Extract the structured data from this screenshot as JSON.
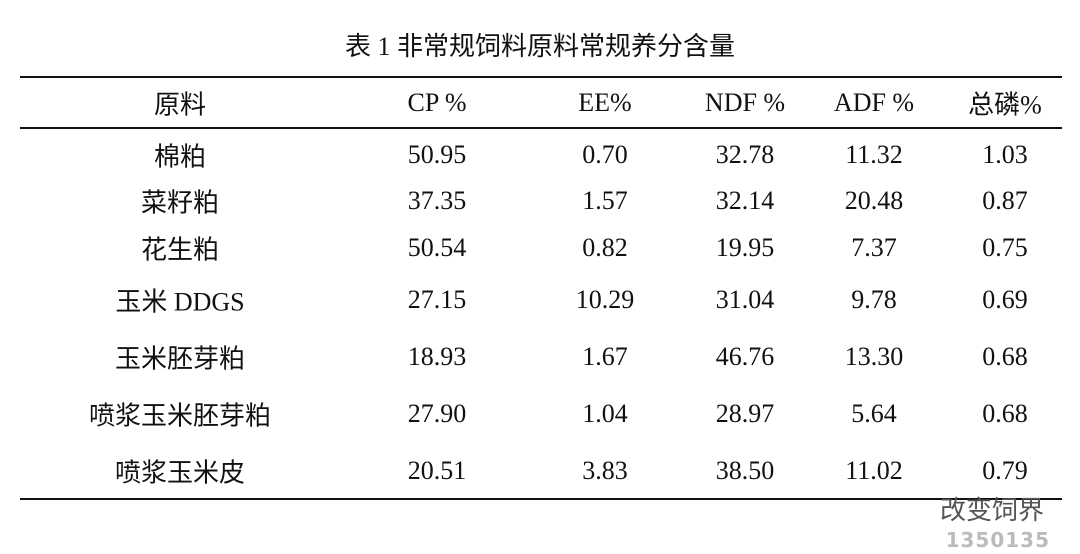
{
  "title": "表 1  非常规饲料原料常规养分含量",
  "table": {
    "header": [
      "原料",
      "CP %",
      "EE%",
      "NDF %",
      "ADF %",
      "总磷%"
    ],
    "rows": [
      [
        "棉粕",
        "50.95",
        "0.70",
        "32.78",
        "11.32",
        "1.03"
      ],
      [
        "菜籽粕",
        "37.35",
        "1.57",
        "32.14",
        "20.48",
        "0.87"
      ],
      [
        "花生粕",
        "50.54",
        "0.82",
        "19.95",
        "7.37",
        "0.75"
      ],
      [
        "玉米 DDGS",
        "27.15",
        "10.29",
        "31.04",
        "9.78",
        "0.69"
      ],
      [
        "玉米胚芽粕",
        "18.93",
        "1.67",
        "46.76",
        "13.30",
        "0.68"
      ],
      [
        "喷浆玉米胚芽粕",
        "27.90",
        "1.04",
        "28.97",
        "5.64",
        "0.68"
      ],
      [
        "喷浆玉米皮",
        "20.51",
        "3.83",
        "38.50",
        "11.02",
        "0.79"
      ]
    ]
  },
  "watermark": {
    "text": "改变饲界",
    "site": "1350135"
  }
}
